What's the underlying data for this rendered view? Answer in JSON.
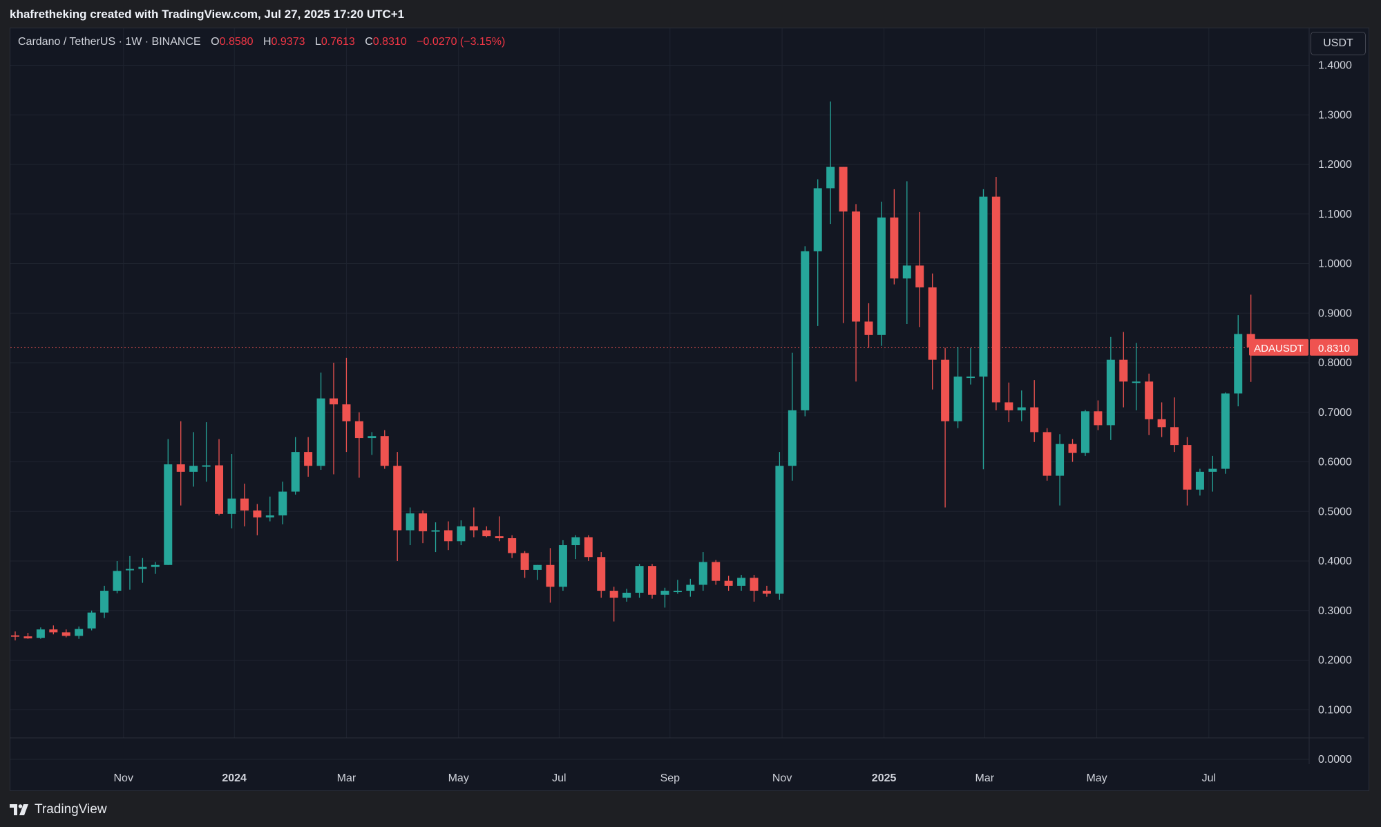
{
  "header": {
    "credit": "khafretheking created with TradingView.com, Jul 27, 2025 17:20 UTC+1"
  },
  "legend": {
    "symbol": "Cardano / TetherUS · 1W · BINANCE",
    "o_label": "O",
    "o_value": "0.8580",
    "h_label": "H",
    "h_value": "0.9373",
    "l_label": "L",
    "l_value": "0.7613",
    "c_label": "C",
    "c_value": "0.8310",
    "change": "−0.0270 (−3.15%)"
  },
  "currency_button": "USDT",
  "price_badge": {
    "symbol": "ADAUSDT",
    "value": "0.8310"
  },
  "footer": {
    "brand": "TradingView"
  },
  "colors": {
    "up": "#26a69a",
    "down": "#ef5350",
    "background": "#131722",
    "grid": "#1f2430",
    "text": "#d1d4dc",
    "current_line": "#ef5350"
  },
  "chart_data": {
    "type": "candlestick",
    "title": "Cardano / TetherUS · 1W · BINANCE",
    "ylabel": "USDT",
    "ylim": [
      0,
      1.4
    ],
    "yticks": [
      "1.4000",
      "1.3000",
      "1.2000",
      "1.1000",
      "1.0000",
      "0.9000",
      "0.8000",
      "0.7000",
      "0.6000",
      "0.5000",
      "0.4000",
      "0.3000",
      "0.2000",
      "0.1000",
      "0.0000"
    ],
    "xticks": [
      {
        "label": "Nov",
        "week": 8.5,
        "bold": false
      },
      {
        "label": "2024",
        "week": 17.2,
        "bold": true
      },
      {
        "label": "Mar",
        "week": 26,
        "bold": false
      },
      {
        "label": "May",
        "week": 34.8,
        "bold": false
      },
      {
        "label": "Jul",
        "week": 42.7,
        "bold": false
      },
      {
        "label": "Sep",
        "week": 51.4,
        "bold": false
      },
      {
        "label": "Nov",
        "week": 60.2,
        "bold": false
      },
      {
        "label": "2025",
        "week": 68.2,
        "bold": true
      },
      {
        "label": "Mar",
        "week": 76.1,
        "bold": false
      },
      {
        "label": "May",
        "week": 84.9,
        "bold": false
      },
      {
        "label": "Jul",
        "week": 93.7,
        "bold": false
      }
    ],
    "last_price": 0.831,
    "grid": true,
    "candles": [
      {
        "o": 0.25,
        "h": 0.258,
        "l": 0.24,
        "c": 0.248
      },
      {
        "o": 0.248,
        "h": 0.255,
        "l": 0.243,
        "c": 0.244
      },
      {
        "o": 0.245,
        "h": 0.266,
        "l": 0.243,
        "c": 0.262
      },
      {
        "o": 0.262,
        "h": 0.27,
        "l": 0.252,
        "c": 0.256
      },
      {
        "o": 0.256,
        "h": 0.262,
        "l": 0.246,
        "c": 0.249
      },
      {
        "o": 0.249,
        "h": 0.268,
        "l": 0.243,
        "c": 0.263
      },
      {
        "o": 0.264,
        "h": 0.3,
        "l": 0.26,
        "c": 0.296
      },
      {
        "o": 0.296,
        "h": 0.35,
        "l": 0.285,
        "c": 0.34
      },
      {
        "o": 0.34,
        "h": 0.4,
        "l": 0.335,
        "c": 0.38
      },
      {
        "o": 0.382,
        "h": 0.41,
        "l": 0.342,
        "c": 0.384
      },
      {
        "o": 0.384,
        "h": 0.406,
        "l": 0.356,
        "c": 0.388
      },
      {
        "o": 0.388,
        "h": 0.398,
        "l": 0.374,
        "c": 0.392
      },
      {
        "o": 0.392,
        "h": 0.646,
        "l": 0.392,
        "c": 0.595
      },
      {
        "o": 0.595,
        "h": 0.682,
        "l": 0.512,
        "c": 0.58
      },
      {
        "o": 0.58,
        "h": 0.66,
        "l": 0.55,
        "c": 0.592
      },
      {
        "o": 0.592,
        "h": 0.68,
        "l": 0.56,
        "c": 0.593
      },
      {
        "o": 0.593,
        "h": 0.646,
        "l": 0.492,
        "c": 0.495
      },
      {
        "o": 0.495,
        "h": 0.616,
        "l": 0.466,
        "c": 0.526
      },
      {
        "o": 0.526,
        "h": 0.556,
        "l": 0.47,
        "c": 0.502
      },
      {
        "o": 0.502,
        "h": 0.515,
        "l": 0.452,
        "c": 0.488
      },
      {
        "o": 0.488,
        "h": 0.53,
        "l": 0.48,
        "c": 0.492
      },
      {
        "o": 0.492,
        "h": 0.56,
        "l": 0.474,
        "c": 0.54
      },
      {
        "o": 0.54,
        "h": 0.65,
        "l": 0.534,
        "c": 0.62
      },
      {
        "o": 0.62,
        "h": 0.65,
        "l": 0.57,
        "c": 0.592
      },
      {
        "o": 0.592,
        "h": 0.78,
        "l": 0.584,
        "c": 0.728
      },
      {
        "o": 0.728,
        "h": 0.8,
        "l": 0.575,
        "c": 0.716
      },
      {
        "o": 0.716,
        "h": 0.81,
        "l": 0.62,
        "c": 0.682
      },
      {
        "o": 0.682,
        "h": 0.7,
        "l": 0.568,
        "c": 0.648
      },
      {
        "o": 0.648,
        "h": 0.66,
        "l": 0.614,
        "c": 0.652
      },
      {
        "o": 0.652,
        "h": 0.664,
        "l": 0.586,
        "c": 0.592
      },
      {
        "o": 0.592,
        "h": 0.62,
        "l": 0.4,
        "c": 0.462
      },
      {
        "o": 0.462,
        "h": 0.508,
        "l": 0.432,
        "c": 0.496
      },
      {
        "o": 0.496,
        "h": 0.502,
        "l": 0.436,
        "c": 0.46
      },
      {
        "o": 0.46,
        "h": 0.478,
        "l": 0.418,
        "c": 0.462
      },
      {
        "o": 0.462,
        "h": 0.48,
        "l": 0.422,
        "c": 0.44
      },
      {
        "o": 0.44,
        "h": 0.482,
        "l": 0.432,
        "c": 0.47
      },
      {
        "o": 0.47,
        "h": 0.508,
        "l": 0.448,
        "c": 0.462
      },
      {
        "o": 0.462,
        "h": 0.47,
        "l": 0.448,
        "c": 0.45
      },
      {
        "o": 0.45,
        "h": 0.49,
        "l": 0.44,
        "c": 0.446
      },
      {
        "o": 0.446,
        "h": 0.452,
        "l": 0.406,
        "c": 0.416
      },
      {
        "o": 0.416,
        "h": 0.42,
        "l": 0.366,
        "c": 0.382
      },
      {
        "o": 0.382,
        "h": 0.392,
        "l": 0.362,
        "c": 0.392
      },
      {
        "o": 0.392,
        "h": 0.426,
        "l": 0.316,
        "c": 0.348
      },
      {
        "o": 0.348,
        "h": 0.442,
        "l": 0.34,
        "c": 0.432
      },
      {
        "o": 0.432,
        "h": 0.452,
        "l": 0.404,
        "c": 0.448
      },
      {
        "o": 0.448,
        "h": 0.452,
        "l": 0.4,
        "c": 0.408
      },
      {
        "o": 0.408,
        "h": 0.418,
        "l": 0.326,
        "c": 0.34
      },
      {
        "o": 0.34,
        "h": 0.348,
        "l": 0.278,
        "c": 0.326
      },
      {
        "o": 0.326,
        "h": 0.344,
        "l": 0.318,
        "c": 0.336
      },
      {
        "o": 0.336,
        "h": 0.394,
        "l": 0.326,
        "c": 0.39
      },
      {
        "o": 0.39,
        "h": 0.394,
        "l": 0.324,
        "c": 0.332
      },
      {
        "o": 0.332,
        "h": 0.346,
        "l": 0.306,
        "c": 0.34
      },
      {
        "o": 0.34,
        "h": 0.362,
        "l": 0.334,
        "c": 0.34
      },
      {
        "o": 0.34,
        "h": 0.364,
        "l": 0.328,
        "c": 0.352
      },
      {
        "o": 0.352,
        "h": 0.418,
        "l": 0.34,
        "c": 0.398
      },
      {
        "o": 0.398,
        "h": 0.402,
        "l": 0.352,
        "c": 0.36
      },
      {
        "o": 0.36,
        "h": 0.37,
        "l": 0.34,
        "c": 0.35
      },
      {
        "o": 0.35,
        "h": 0.372,
        "l": 0.34,
        "c": 0.366
      },
      {
        "o": 0.366,
        "h": 0.372,
        "l": 0.318,
        "c": 0.34
      },
      {
        "o": 0.34,
        "h": 0.35,
        "l": 0.328,
        "c": 0.334
      },
      {
        "o": 0.334,
        "h": 0.62,
        "l": 0.322,
        "c": 0.592
      },
      {
        "o": 0.592,
        "h": 0.82,
        "l": 0.562,
        "c": 0.704
      },
      {
        "o": 0.704,
        "h": 1.035,
        "l": 0.692,
        "c": 1.025
      },
      {
        "o": 1.025,
        "h": 1.17,
        "l": 0.874,
        "c": 1.152
      },
      {
        "o": 1.152,
        "h": 1.327,
        "l": 1.08,
        "c": 1.195
      },
      {
        "o": 1.195,
        "h": 1.195,
        "l": 0.88,
        "c": 1.105
      },
      {
        "o": 1.105,
        "h": 1.12,
        "l": 0.762,
        "c": 0.883
      },
      {
        "o": 0.883,
        "h": 0.92,
        "l": 0.83,
        "c": 0.856
      },
      {
        "o": 0.856,
        "h": 1.125,
        "l": 0.834,
        "c": 1.093
      },
      {
        "o": 1.093,
        "h": 1.15,
        "l": 0.958,
        "c": 0.97
      },
      {
        "o": 0.97,
        "h": 1.166,
        "l": 0.878,
        "c": 0.996
      },
      {
        "o": 0.996,
        "h": 1.104,
        "l": 0.872,
        "c": 0.952
      },
      {
        "o": 0.952,
        "h": 0.98,
        "l": 0.746,
        "c": 0.806
      },
      {
        "o": 0.806,
        "h": 0.83,
        "l": 0.508,
        "c": 0.682
      },
      {
        "o": 0.682,
        "h": 0.832,
        "l": 0.668,
        "c": 0.772
      },
      {
        "o": 0.772,
        "h": 0.83,
        "l": 0.756,
        "c": 0.772
      },
      {
        "o": 0.772,
        "h": 1.15,
        "l": 0.585,
        "c": 1.135
      },
      {
        "o": 1.135,
        "h": 1.175,
        "l": 0.704,
        "c": 0.72
      },
      {
        "o": 0.72,
        "h": 0.76,
        "l": 0.68,
        "c": 0.704
      },
      {
        "o": 0.704,
        "h": 0.744,
        "l": 0.682,
        "c": 0.71
      },
      {
        "o": 0.71,
        "h": 0.765,
        "l": 0.64,
        "c": 0.66
      },
      {
        "o": 0.66,
        "h": 0.668,
        "l": 0.562,
        "c": 0.572
      },
      {
        "o": 0.572,
        "h": 0.656,
        "l": 0.512,
        "c": 0.636
      },
      {
        "o": 0.636,
        "h": 0.646,
        "l": 0.6,
        "c": 0.618
      },
      {
        "o": 0.618,
        "h": 0.705,
        "l": 0.612,
        "c": 0.702
      },
      {
        "o": 0.702,
        "h": 0.724,
        "l": 0.664,
        "c": 0.674
      },
      {
        "o": 0.674,
        "h": 0.852,
        "l": 0.644,
        "c": 0.806
      },
      {
        "o": 0.806,
        "h": 0.862,
        "l": 0.71,
        "c": 0.762
      },
      {
        "o": 0.762,
        "h": 0.84,
        "l": 0.704,
        "c": 0.762
      },
      {
        "o": 0.762,
        "h": 0.778,
        "l": 0.654,
        "c": 0.686
      },
      {
        "o": 0.686,
        "h": 0.72,
        "l": 0.65,
        "c": 0.67
      },
      {
        "o": 0.67,
        "h": 0.73,
        "l": 0.62,
        "c": 0.634
      },
      {
        "o": 0.634,
        "h": 0.65,
        "l": 0.512,
        "c": 0.544
      },
      {
        "o": 0.544,
        "h": 0.586,
        "l": 0.532,
        "c": 0.58
      },
      {
        "o": 0.58,
        "h": 0.612,
        "l": 0.54,
        "c": 0.586
      },
      {
        "o": 0.586,
        "h": 0.74,
        "l": 0.576,
        "c": 0.738
      },
      {
        "o": 0.738,
        "h": 0.896,
        "l": 0.712,
        "c": 0.858
      },
      {
        "o": 0.858,
        "h": 0.9373,
        "l": 0.7613,
        "c": 0.831
      }
    ]
  }
}
